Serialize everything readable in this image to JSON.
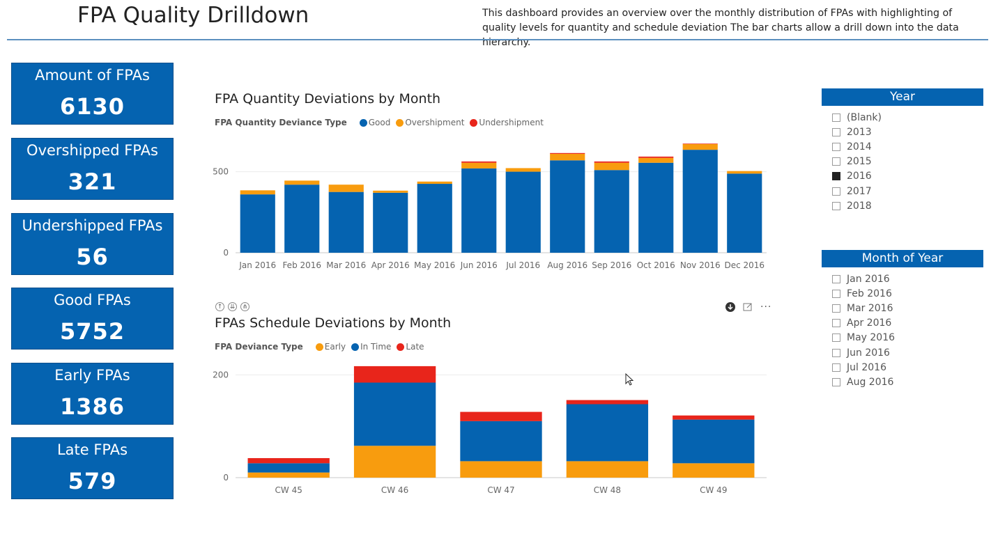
{
  "header": {
    "title": "FPA Quality Drilldown",
    "description": "This dashboard provides an overview over the monthly distribution of FPAs with highlighting of quality levels for quantity and schedule deviation The bar charts allow a drill down into the data hierarchy."
  },
  "kpis": [
    {
      "label": "Amount of FPAs",
      "value": "6130"
    },
    {
      "label": "Overshipped FPAs",
      "value": "321"
    },
    {
      "label": "Undershipped FPAs",
      "value": "56"
    },
    {
      "label": "Good FPAs",
      "value": "5752"
    },
    {
      "label": "Early FPAs",
      "value": "1386"
    },
    {
      "label": "Late FPAs",
      "value": "579"
    }
  ],
  "colors": {
    "blue": "#0563b0",
    "orange": "#f89c0e",
    "red": "#e8251b"
  },
  "quantity_chart": {
    "title": "FPA Quantity Deviations by Month",
    "legend_title": "FPA Quantity Deviance Type",
    "legend": [
      "Good",
      "Overshipment",
      "Undershipment"
    ]
  },
  "schedule_chart": {
    "title": "FPAs Schedule Deviations by Month",
    "legend_title": "FPA Deviance Type",
    "legend": [
      "Early",
      "In Time",
      "Late"
    ]
  },
  "chart_data": [
    {
      "type": "bar",
      "stacked": true,
      "title": "FPA Quantity Deviations by Month",
      "categories": [
        "Jan 2016",
        "Feb 2016",
        "Mar 2016",
        "Apr 2016",
        "May 2016",
        "Jun 2016",
        "Jul 2016",
        "Aug 2016",
        "Sep 2016",
        "Oct 2016",
        "Nov 2016",
        "Dec 2016"
      ],
      "series": [
        {
          "name": "Good",
          "color": "#0563b0",
          "values": [
            360,
            420,
            375,
            370,
            425,
            520,
            500,
            570,
            510,
            555,
            635,
            488
          ]
        },
        {
          "name": "Overshipment",
          "color": "#f89c0e",
          "values": [
            25,
            25,
            45,
            13,
            14,
            35,
            22,
            40,
            45,
            30,
            35,
            16
          ]
        },
        {
          "name": "Undershipment",
          "color": "#e8251b",
          "values": [
            0,
            0,
            0,
            0,
            0,
            8,
            0,
            5,
            8,
            8,
            3,
            0
          ]
        }
      ],
      "ylim": [
        0,
        700
      ],
      "yticks": [
        0,
        500
      ]
    },
    {
      "type": "bar",
      "stacked": true,
      "title": "FPAs Schedule Deviations by Month",
      "categories": [
        "CW 45",
        "CW 46",
        "CW 47",
        "CW 48",
        "CW 49"
      ],
      "series": [
        {
          "name": "Early",
          "color": "#f89c0e",
          "values": [
            10,
            62,
            32,
            32,
            28
          ]
        },
        {
          "name": "In Time",
          "color": "#0563b0",
          "values": [
            18,
            123,
            78,
            111,
            85
          ]
        },
        {
          "name": "Late",
          "color": "#e8251b",
          "values": [
            10,
            32,
            18,
            8,
            8
          ]
        }
      ],
      "ylim": [
        0,
        225
      ],
      "yticks": [
        0,
        200
      ]
    }
  ],
  "slicers": {
    "year": {
      "title": "Year",
      "items": [
        {
          "label": "(Blank)",
          "checked": false
        },
        {
          "label": "2013",
          "checked": false
        },
        {
          "label": "2014",
          "checked": false
        },
        {
          "label": "2015",
          "checked": false
        },
        {
          "label": "2016",
          "checked": true
        },
        {
          "label": "2017",
          "checked": false
        },
        {
          "label": "2018",
          "checked": false
        }
      ]
    },
    "month": {
      "title": "Month of Year",
      "items": [
        {
          "label": "Jan 2016",
          "checked": false
        },
        {
          "label": "Feb 2016",
          "checked": false
        },
        {
          "label": "Mar 2016",
          "checked": false
        },
        {
          "label": "Apr 2016",
          "checked": false
        },
        {
          "label": "May 2016",
          "checked": false
        },
        {
          "label": "Jun 2016",
          "checked": false
        },
        {
          "label": "Jul 2016",
          "checked": false
        },
        {
          "label": "Aug 2016",
          "checked": false
        }
      ]
    }
  }
}
